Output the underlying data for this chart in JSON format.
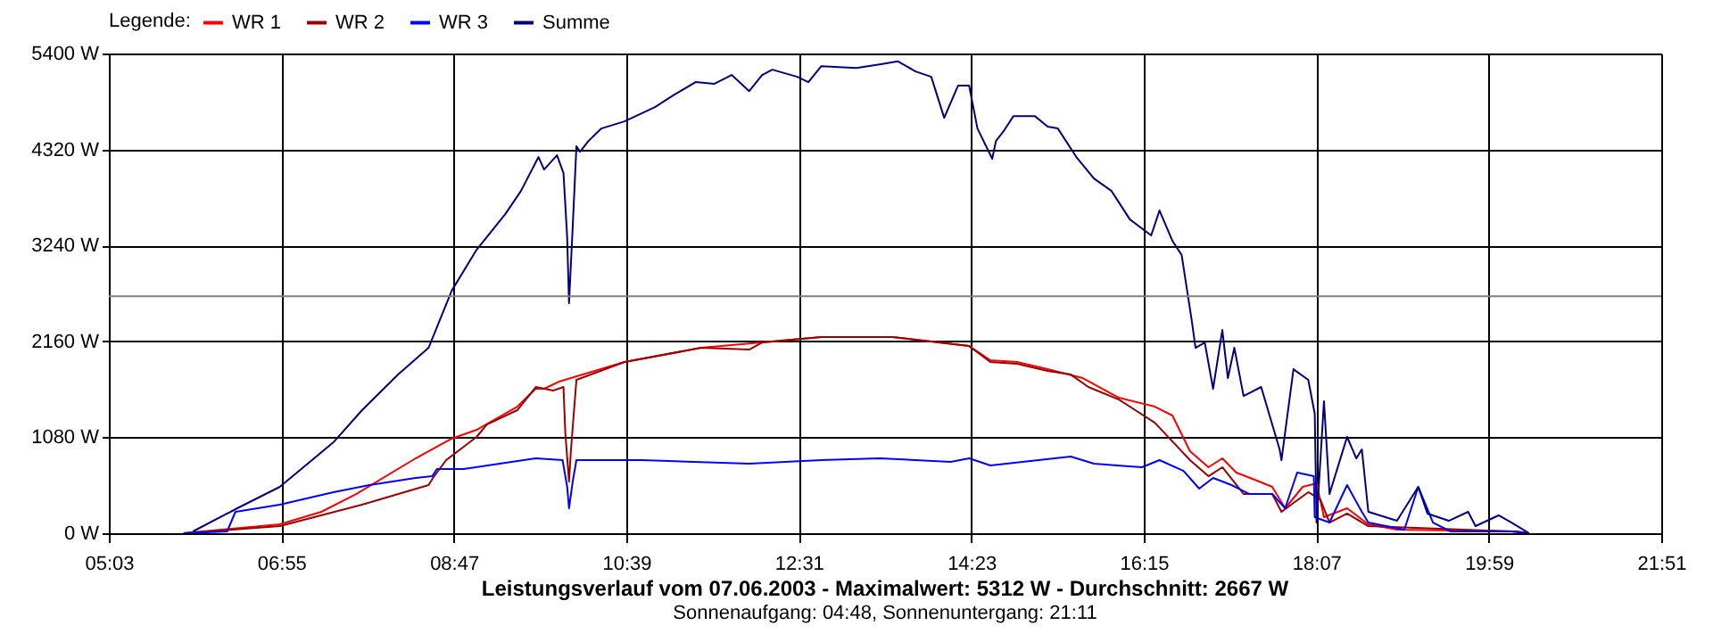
{
  "chart_data": {
    "type": "line",
    "title": "Leistungsverlauf vom 07.06.2003 - Maximalwert: 5312 W - Durchschnitt: 2667 W",
    "subtitle": "Sonnenaufgang: 04:48, Sonnenuntergang: 21:11",
    "legend_title": "Legende:",
    "legend": "top left",
    "grid": true,
    "line_style": "solid",
    "xlim": [
      5.05,
      21.85
    ],
    "xticks": [
      {
        "value": 5.05,
        "label": "05:03"
      },
      {
        "value": 6.9167,
        "label": "06:55"
      },
      {
        "value": 8.7833,
        "label": "08:47"
      },
      {
        "value": 10.65,
        "label": "10:39"
      },
      {
        "value": 12.5167,
        "label": "12:31"
      },
      {
        "value": 14.3833,
        "label": "14:23"
      },
      {
        "value": 16.25,
        "label": "16:15"
      },
      {
        "value": 18.1167,
        "label": "18:07"
      },
      {
        "value": 19.9833,
        "label": "19:59"
      },
      {
        "value": 21.85,
        "label": "21:51"
      }
    ],
    "ylim": [
      0,
      5400
    ],
    "yticks": [
      {
        "value": 0,
        "label": "0 W"
      },
      {
        "value": 1080,
        "label": "1080 W"
      },
      {
        "value": 2160,
        "label": "2160 W"
      },
      {
        "value": 3240,
        "label": "3240 W"
      },
      {
        "value": 4320,
        "label": "4320 W"
      },
      {
        "value": 5400,
        "label": "5400 W"
      }
    ],
    "ref_lines": [
      {
        "axis": "y",
        "value": 2667,
        "color": "#808080"
      }
    ],
    "series": [
      {
        "name": "WR 1",
        "color": "#ff0000",
        "x": [
          5.86,
          6.9,
          7.35,
          7.73,
          8.37,
          8.76,
          9.03,
          9.47,
          9.67,
          9.76,
          9.92,
          10.63,
          11.46,
          12.12,
          12.76,
          13.53,
          14.36,
          14.59,
          14.88,
          15.21,
          15.59,
          15.98,
          16.37,
          16.56,
          16.75,
          16.95,
          17.1,
          17.25,
          17.45,
          17.64,
          17.78,
          17.97,
          18.12,
          18.2,
          18.45,
          18.68,
          18.99,
          20.29,
          20.42
        ],
        "values": [
          0,
          100,
          241,
          442,
          843,
          1064,
          1164,
          1425,
          1626,
          1626,
          1706,
          1927,
          2087,
          2147,
          2208,
          2208,
          2107,
          1947,
          1927,
          1846,
          1746,
          1525,
          1425,
          1325,
          923,
          743,
          843,
          682,
          602,
          522,
          281,
          522,
          562,
          181,
          281,
          100,
          40,
          20,
          0
        ]
      },
      {
        "name": "WR 2",
        "color": "#990000",
        "x": [
          5.86,
          6.9,
          7.79,
          8.51,
          8.57,
          8.7,
          9.03,
          9.14,
          9.47,
          9.67,
          9.86,
          9.97,
          9.99,
          10.03,
          10.05,
          10.11,
          10.63,
          11.46,
          11.98,
          12.12,
          12.76,
          13.53,
          14.36,
          14.59,
          14.88,
          15.21,
          15.46,
          15.65,
          15.98,
          16.37,
          16.75,
          16.95,
          17.1,
          17.33,
          17.64,
          17.74,
          18.03,
          18.16,
          18.26,
          18.45,
          18.68,
          20.23,
          20.42
        ],
        "values": [
          0,
          80,
          321,
          542,
          642,
          823,
          1084,
          1224,
          1385,
          1646,
          1606,
          1646,
          1124,
          582,
          923,
          1726,
          1927,
          2087,
          2067,
          2147,
          2208,
          2208,
          2107,
          1927,
          1907,
          1826,
          1786,
          1646,
          1505,
          1244,
          823,
          642,
          743,
          442,
          442,
          241,
          462,
          381,
          120,
          221,
          80,
          20,
          0
        ]
      },
      {
        "name": "WR 3",
        "color": "#0000ff",
        "x": [
          5.86,
          6.33,
          6.42,
          6.9,
          7.48,
          7.87,
          8.37,
          8.55,
          8.6,
          8.89,
          9.67,
          9.96,
          10.01,
          10.03,
          10.07,
          10.11,
          10.82,
          11.98,
          12.76,
          13.39,
          14.16,
          14.36,
          14.59,
          15.46,
          15.71,
          16.23,
          16.42,
          16.68,
          16.85,
          17,
          17.2,
          17.39,
          17.64,
          17.78,
          17.91,
          18.09,
          18.1,
          18.26,
          18.45,
          18.61,
          18.68,
          19.07,
          19.22,
          19.38,
          19.57,
          20.23,
          20.42
        ],
        "values": [
          0,
          20,
          241,
          321,
          462,
          542,
          622,
          642,
          723,
          723,
          843,
          823,
          522,
          281,
          582,
          823,
          823,
          783,
          823,
          843,
          803,
          843,
          763,
          863,
          783,
          743,
          823,
          702,
          502,
          622,
          542,
          442,
          442,
          281,
          682,
          642,
          181,
          120,
          542,
          241,
          120,
          40,
          522,
          120,
          20,
          20,
          0
        ]
      },
      {
        "name": "Summe",
        "color": "#000080",
        "x": [
          5.96,
          6.44,
          6.9,
          7.48,
          7.79,
          8.18,
          8.51,
          8.76,
          9.03,
          9.34,
          9.51,
          9.7,
          9.76,
          9.9,
          9.97,
          10.01,
          10.03,
          10.07,
          10.11,
          10.15,
          10.24,
          10.38,
          10.63,
          10.96,
          11.17,
          11.4,
          11.6,
          11.79,
          11.98,
          12.12,
          12.23,
          12.5,
          12.62,
          12.76,
          13.14,
          13.39,
          13.59,
          13.78,
          13.95,
          14.09,
          14.24,
          14.36,
          14.45,
          14.61,
          14.65,
          14.74,
          14.84,
          15.07,
          15.21,
          15.32,
          15.52,
          15.71,
          15.9,
          16.1,
          16.33,
          16.42,
          16.56,
          16.66,
          16.77,
          16.81,
          16.91,
          17,
          17.1,
          17.16,
          17.23,
          17.33,
          17.52,
          17.72,
          17.74,
          17.87,
          18.03,
          18.1,
          18.12,
          18.2,
          18.26,
          18.45,
          18.55,
          18.61,
          18.68,
          18.99,
          19.22,
          19.32,
          19.55,
          19.76,
          19.84,
          20.09,
          20.23,
          20.42
        ],
        "values": [
          20,
          281,
          522,
          1023,
          1385,
          1786,
          2087,
          2729,
          3191,
          3592,
          3853,
          4235,
          4094,
          4255,
          4054,
          3332,
          2589,
          3452,
          4355,
          4295,
          4415,
          4556,
          4636,
          4797,
          4937,
          5078,
          5058,
          5158,
          4977,
          5158,
          5218,
          5138,
          5078,
          5258,
          5238,
          5278,
          5312,
          5198,
          5138,
          4676,
          5038,
          5038,
          4556,
          4215,
          4415,
          4536,
          4696,
          4696,
          4576,
          4556,
          4235,
          3994,
          3853,
          3532,
          3352,
          3633,
          3291,
          3131,
          2388,
          2087,
          2147,
          1626,
          2288,
          1746,
          2087,
          1545,
          1646,
          943,
          823,
          1846,
          1726,
          1345,
          120,
          1485,
          442,
          1084,
          843,
          943,
          241,
          140,
          522,
          221,
          140,
          241,
          80,
          201,
          120,
          0
        ]
      }
    ]
  }
}
